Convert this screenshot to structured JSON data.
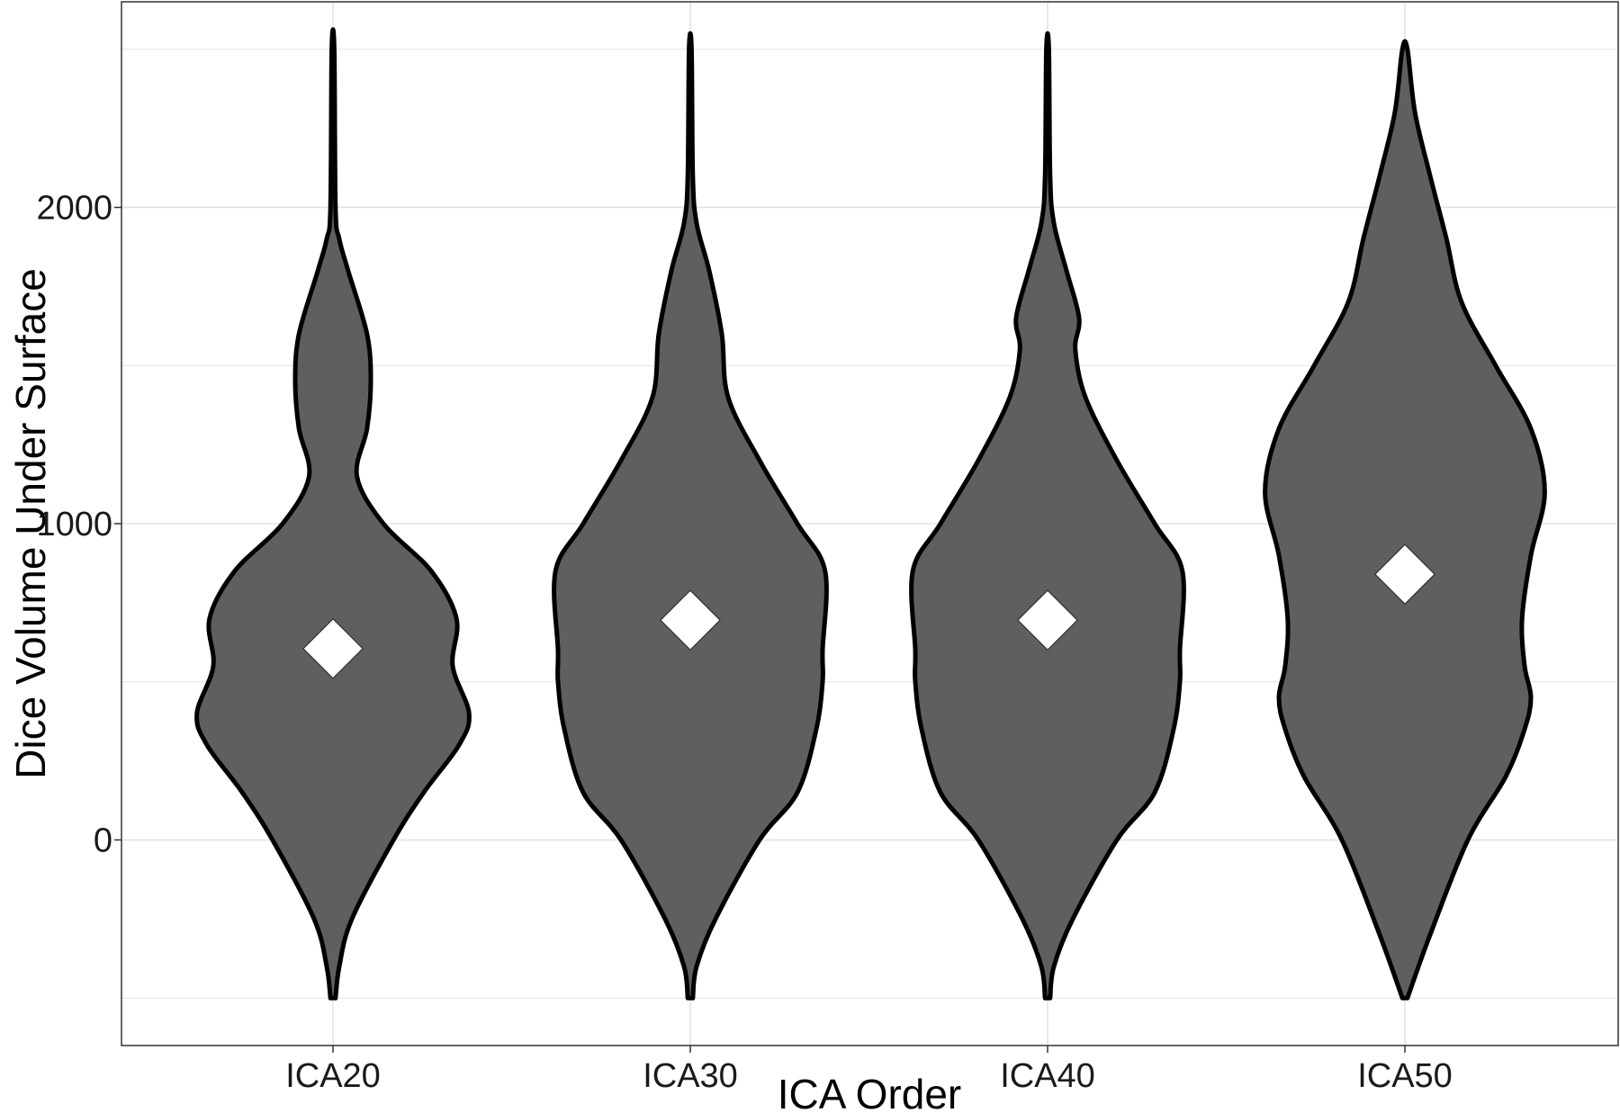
{
  "chart_data": {
    "type": "violin",
    "xlabel": "ICA Order",
    "ylabel": "Dice Volume Under Surface",
    "ylim": [
      -650,
      2650
    ],
    "yticks": [
      0,
      1000,
      2000
    ],
    "ytick_labels": [
      "0",
      "1000",
      "2000"
    ],
    "categories": [
      "ICA20",
      "ICA30",
      "ICA40",
      "ICA50"
    ],
    "grid": true,
    "legend": "none",
    "colors": {
      "violin_fill": "#5f5f5f",
      "violin_outline": "#000000",
      "mean_marker": "#ffffff",
      "grid": "#e3e3e3",
      "panel_border": "#333333"
    },
    "mean_marker_shape": "diamond",
    "y_range": [
      -500,
      2500
    ],
    "means": [
      605,
      695,
      695,
      840
    ],
    "density_profiles": [
      [
        [
          -500,
          0.02
        ],
        [
          -400,
          0.05
        ],
        [
          -250,
          0.15
        ],
        [
          0,
          0.48
        ],
        [
          150,
          0.72
        ],
        [
          300,
          1.0
        ],
        [
          400,
          1.08
        ],
        [
          550,
          0.95
        ],
        [
          700,
          0.98
        ],
        [
          850,
          0.78
        ],
        [
          1000,
          0.4
        ],
        [
          1150,
          0.19
        ],
        [
          1300,
          0.27
        ],
        [
          1450,
          0.3
        ],
        [
          1600,
          0.27
        ],
        [
          1800,
          0.12
        ],
        [
          1900,
          0.05
        ],
        [
          2000,
          0.02
        ],
        [
          2500,
          0.01
        ]
      ],
      [
        [
          -500,
          0.02
        ],
        [
          -400,
          0.05
        ],
        [
          -250,
          0.2
        ],
        [
          0,
          0.55
        ],
        [
          150,
          0.85
        ],
        [
          350,
          1.0
        ],
        [
          500,
          1.05
        ],
        [
          600,
          1.05
        ],
        [
          850,
          1.07
        ],
        [
          1000,
          0.85
        ],
        [
          1200,
          0.55
        ],
        [
          1400,
          0.3
        ],
        [
          1600,
          0.25
        ],
        [
          1800,
          0.15
        ],
        [
          1950,
          0.05
        ],
        [
          2100,
          0.02
        ],
        [
          2500,
          0.01
        ]
      ],
      [
        [
          -500,
          0.02
        ],
        [
          -400,
          0.05
        ],
        [
          -250,
          0.2
        ],
        [
          0,
          0.55
        ],
        [
          150,
          0.85
        ],
        [
          350,
          1.0
        ],
        [
          500,
          1.05
        ],
        [
          600,
          1.05
        ],
        [
          850,
          1.07
        ],
        [
          1000,
          0.85
        ],
        [
          1200,
          0.55
        ],
        [
          1400,
          0.3
        ],
        [
          1550,
          0.22
        ],
        [
          1650,
          0.25
        ],
        [
          1800,
          0.15
        ],
        [
          1950,
          0.05
        ],
        [
          2100,
          0.02
        ],
        [
          2500,
          0.01
        ]
      ],
      [
        [
          -500,
          0.02
        ],
        [
          -300,
          0.2
        ],
        [
          0,
          0.5
        ],
        [
          200,
          0.8
        ],
        [
          350,
          0.95
        ],
        [
          450,
          1.0
        ],
        [
          550,
          0.95
        ],
        [
          700,
          0.93
        ],
        [
          900,
          1.0
        ],
        [
          1100,
          1.11
        ],
        [
          1300,
          1.0
        ],
        [
          1500,
          0.72
        ],
        [
          1700,
          0.45
        ],
        [
          1900,
          0.33
        ],
        [
          2100,
          0.2
        ],
        [
          2300,
          0.08
        ],
        [
          2500,
          0.02
        ]
      ]
    ]
  }
}
